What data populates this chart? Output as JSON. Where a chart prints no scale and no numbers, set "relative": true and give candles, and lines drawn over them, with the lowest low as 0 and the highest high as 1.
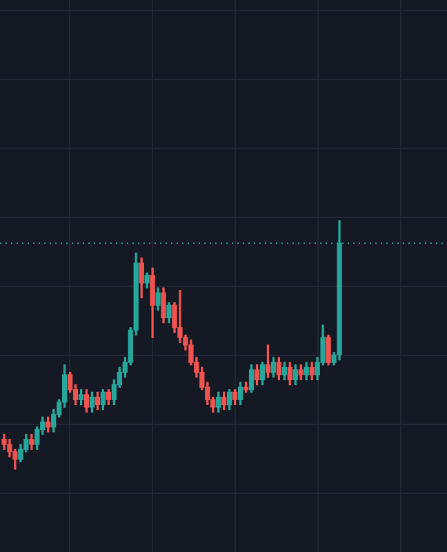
{
  "chart_data": {
    "type": "candlestick",
    "relative": true,
    "grid": true,
    "legend": false,
    "categories": [
      null,
      null,
      null,
      null,
      null,
      null,
      null,
      null,
      null,
      null,
      null,
      null,
      null,
      null,
      null,
      null,
      null,
      null,
      null,
      null,
      null,
      null,
      null,
      null,
      null,
      null,
      null,
      null,
      null,
      null,
      null,
      null,
      null,
      null,
      null,
      null,
      null,
      null,
      null,
      null,
      null,
      null,
      null,
      null,
      null,
      null,
      null,
      null,
      null,
      null,
      null,
      null,
      null,
      null,
      null,
      null,
      null,
      null,
      null,
      null,
      null,
      null
    ],
    "ohlc": [
      [
        0.12,
        0.14,
        0.08,
        0.1
      ],
      [
        0.1,
        0.12,
        0.05,
        0.07
      ],
      [
        0.07,
        0.08,
        0,
        0.04
      ],
      [
        0.04,
        0.1,
        0.03,
        0.08
      ],
      [
        0.08,
        0.14,
        0.07,
        0.12
      ],
      [
        0.12,
        0.14,
        0.08,
        0.1
      ],
      [
        0.1,
        0.17,
        0.08,
        0.16
      ],
      [
        0.16,
        0.21,
        0.14,
        0.19
      ],
      [
        0.19,
        0.21,
        0.15,
        0.17
      ],
      [
        0.17,
        0.24,
        0.15,
        0.22
      ],
      [
        0.22,
        0.28,
        0.21,
        0.27
      ],
      [
        0.27,
        0.42,
        0.25,
        0.38
      ],
      [
        0.38,
        0.39,
        0.31,
        0.32
      ],
      [
        0.32,
        0.34,
        0.26,
        0.28
      ],
      [
        0.28,
        0.32,
        0.26,
        0.3
      ],
      [
        0.3,
        0.32,
        0.23,
        0.25
      ],
      [
        0.25,
        0.31,
        0.23,
        0.29
      ],
      [
        0.29,
        0.31,
        0.24,
        0.26
      ],
      [
        0.26,
        0.32,
        0.24,
        0.31
      ],
      [
        0.31,
        0.32,
        0.26,
        0.28
      ],
      [
        0.28,
        0.36,
        0.26,
        0.34
      ],
      [
        0.34,
        0.41,
        0.33,
        0.39
      ],
      [
        0.39,
        0.45,
        0.37,
        0.43
      ],
      [
        0.43,
        0.57,
        0.42,
        0.56
      ],
      [
        0.56,
        0.87,
        0.54,
        0.83
      ],
      [
        0.83,
        0.85,
        0.69,
        0.75
      ],
      [
        0.75,
        0.79,
        0.73,
        0.78
      ],
      [
        0.78,
        0.81,
        0.53,
        0.66
      ],
      [
        0.66,
        0.73,
        0.64,
        0.71
      ],
      [
        0.71,
        0.73,
        0.59,
        0.61
      ],
      [
        0.61,
        0.67,
        0.59,
        0.66
      ],
      [
        0.66,
        0.67,
        0.55,
        0.57
      ],
      [
        0.57,
        0.72,
        0.51,
        0.53
      ],
      [
        0.53,
        0.54,
        0.48,
        0.5
      ],
      [
        0.5,
        0.52,
        0.42,
        0.43
      ],
      [
        0.43,
        0.45,
        0.37,
        0.39
      ],
      [
        0.39,
        0.41,
        0.32,
        0.33
      ],
      [
        0.33,
        0.35,
        0.26,
        0.28
      ],
      [
        0.28,
        0.29,
        0.23,
        0.25
      ],
      [
        0.25,
        0.31,
        0.23,
        0.29
      ],
      [
        0.29,
        0.31,
        0.24,
        0.26
      ],
      [
        0.26,
        0.32,
        0.24,
        0.31
      ],
      [
        0.31,
        0.32,
        0.26,
        0.28
      ],
      [
        0.28,
        0.35,
        0.26,
        0.33
      ],
      [
        0.33,
        0.35,
        0.31,
        0.32
      ],
      [
        0.32,
        0.42,
        0.31,
        0.4
      ],
      [
        0.4,
        0.42,
        0.34,
        0.36
      ],
      [
        0.36,
        0.43,
        0.34,
        0.42
      ],
      [
        0.42,
        0.5,
        0.37,
        0.39
      ],
      [
        0.39,
        0.45,
        0.37,
        0.43
      ],
      [
        0.43,
        0.45,
        0.36,
        0.38
      ],
      [
        0.38,
        0.43,
        0.36,
        0.41
      ],
      [
        0.41,
        0.43,
        0.34,
        0.36
      ],
      [
        0.36,
        0.42,
        0.34,
        0.4
      ],
      [
        0.4,
        0.42,
        0.36,
        0.38
      ],
      [
        0.38,
        0.43,
        0.36,
        0.41
      ],
      [
        0.41,
        0.43,
        0.36,
        0.38
      ],
      [
        0.38,
        0.45,
        0.36,
        0.43
      ],
      [
        0.43,
        0.58,
        0.42,
        0.53
      ],
      [
        0.53,
        0.54,
        0.42,
        0.43
      ],
      [
        0.43,
        0.47,
        0.42,
        0.46
      ],
      [
        0.46,
        1,
        0.44,
        0.91
      ]
    ],
    "colors": [
      "#ef5350",
      "#ef5350",
      "#ef5350",
      "#26a69a",
      "#26a69a",
      "#ef5350",
      "#26a69a",
      "#26a69a",
      "#ef5350",
      "#26a69a",
      "#26a69a",
      "#26a69a",
      "#ef5350",
      "#ef5350",
      "#26a69a",
      "#ef5350",
      "#26a69a",
      "#ef5350",
      "#26a69a",
      "#ef5350",
      "#26a69a",
      "#26a69a",
      "#26a69a",
      "#26a69a",
      "#26a69a",
      "#ef5350",
      "#26a69a",
      "#ef5350",
      "#26a69a",
      "#ef5350",
      "#26a69a",
      "#ef5350",
      "#ef5350",
      "#ef5350",
      "#ef5350",
      "#ef5350",
      "#ef5350",
      "#ef5350",
      "#ef5350",
      "#26a69a",
      "#ef5350",
      "#26a69a",
      "#ef5350",
      "#26a69a",
      "#ef5350",
      "#26a69a",
      "#ef5350",
      "#26a69a",
      "#ef5350",
      "#26a69a",
      "#ef5350",
      "#26a69a",
      "#ef5350",
      "#26a69a",
      "#ef5350",
      "#26a69a",
      "#ef5350",
      "#26a69a",
      "#26a69a",
      "#ef5350",
      "#26a69a",
      "#26a69a"
    ],
    "ref_lines": [
      {
        "axis": "y",
        "value": 0.91,
        "color": "#26a69a",
        "line_style": "dotted"
      }
    ]
  }
}
